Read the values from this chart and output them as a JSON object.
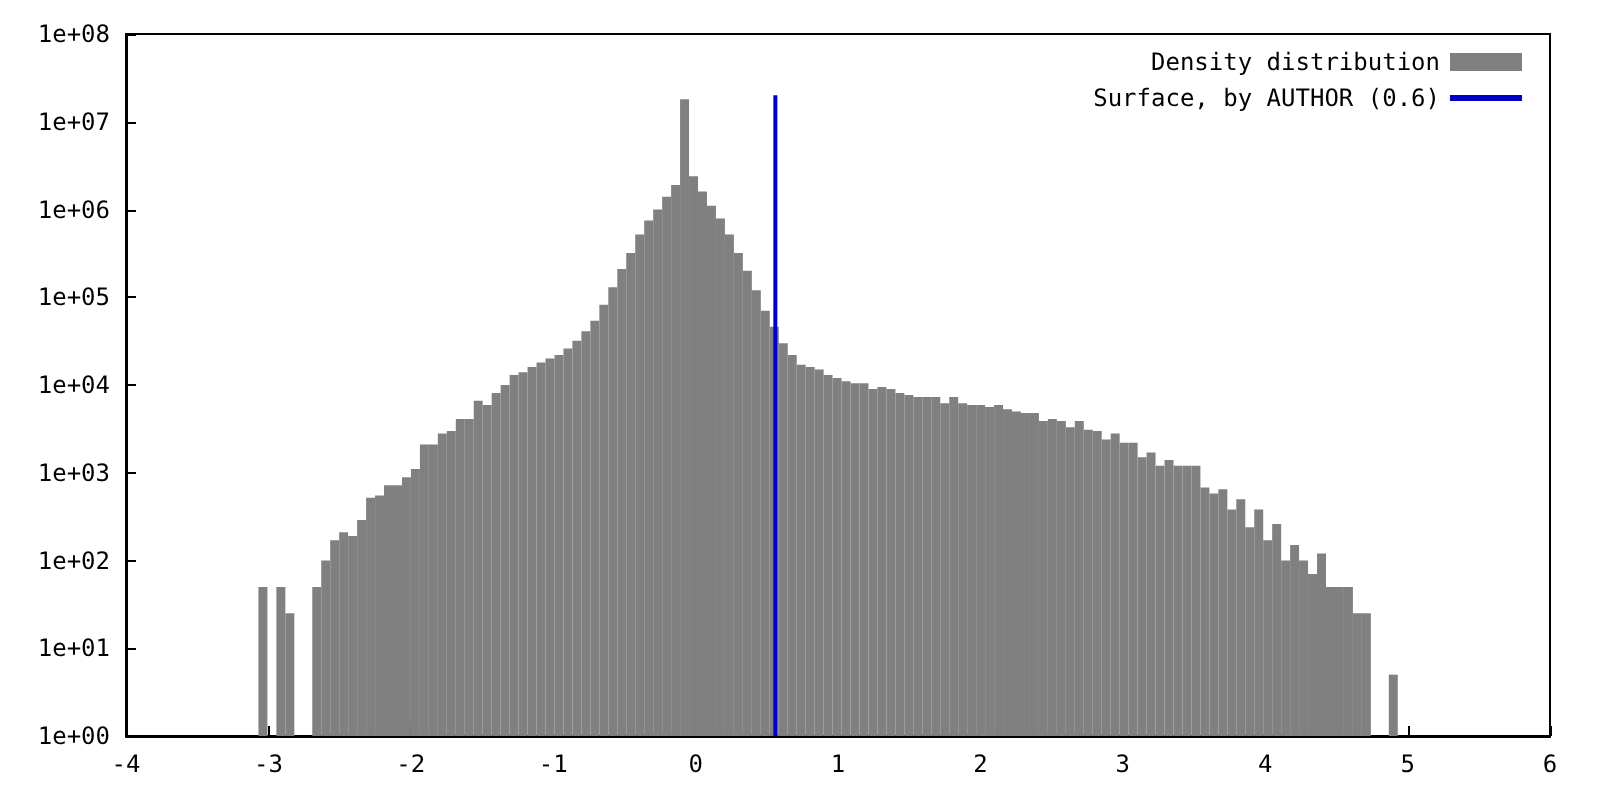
{
  "chart_data": {
    "type": "histogram",
    "bins": [
      -3.07,
      -3.007,
      -2.944,
      -2.881,
      -2.818,
      -2.755,
      -2.692,
      -2.629,
      -2.566,
      -2.503,
      -2.44,
      -2.377,
      -2.314,
      -2.251,
      -2.188,
      -2.125,
      -2.062,
      -1.999,
      -1.936,
      -1.873,
      -1.81,
      -1.747,
      -1.684,
      -1.621,
      -1.558,
      -1.495,
      -1.432,
      -1.369,
      -1.306,
      -1.243,
      -1.18,
      -1.117,
      -1.054,
      -0.991,
      -0.928,
      -0.865,
      -0.802,
      -0.739,
      -0.676,
      -0.613,
      -0.55,
      -0.487,
      -0.424,
      -0.361,
      -0.298,
      -0.235,
      -0.172,
      -0.109,
      -0.046,
      0.017,
      0.08,
      0.143,
      0.206,
      0.269,
      0.332,
      0.395,
      0.458,
      0.521,
      0.584,
      0.647,
      0.71,
      0.773,
      0.836,
      0.899,
      0.962,
      1.025,
      1.088,
      1.151,
      1.214,
      1.277,
      1.34,
      1.403,
      1.466,
      1.529,
      1.592,
      1.655,
      1.718,
      1.781,
      1.844,
      1.907,
      1.97,
      2.033,
      2.096,
      2.159,
      2.222,
      2.285,
      2.348,
      2.411,
      2.474,
      2.537,
      2.6,
      2.663,
      2.726,
      2.789,
      2.852,
      2.915,
      2.978,
      3.041,
      3.104,
      3.167,
      3.23,
      3.293,
      3.356,
      3.419,
      3.482,
      3.545,
      3.608,
      3.671,
      3.734,
      3.797,
      3.86,
      3.923,
      3.986,
      4.049,
      4.112,
      4.175,
      4.238,
      4.301,
      4.364,
      4.427,
      4.49,
      4.553,
      4.616,
      4.679,
      4.742,
      4.805,
      4.868,
      4.931
    ],
    "series": [
      {
        "name": "Density distribution",
        "color": "#808080",
        "values": [
          50,
          null,
          50,
          25,
          null,
          null,
          50,
          100,
          170,
          210,
          190,
          290,
          520,
          550,
          720,
          720,
          890,
          1100,
          2100,
          2100,
          2800,
          3000,
          4100,
          4100,
          6600,
          5900,
          8100,
          10000,
          13000,
          14000,
          16000,
          18000,
          20000,
          22000,
          26000,
          32000,
          41000,
          54000,
          82000,
          130000,
          210000,
          320000,
          520000,
          750000,
          1000000,
          1400000,
          1900000,
          18000000,
          2400000,
          1600000,
          1100000,
          790000,
          520000,
          320000,
          200000,
          120000,
          70000,
          46000,
          30000,
          22000,
          17000,
          16000,
          15000,
          13000,
          12000,
          11000,
          10500,
          10500,
          9000,
          9500,
          9000,
          8100,
          7700,
          7300,
          7300,
          7300,
          6200,
          7300,
          6200,
          5900,
          5900,
          5600,
          5900,
          5300,
          5000,
          4800,
          4800,
          3900,
          4100,
          3900,
          3300,
          3900,
          3100,
          3000,
          2400,
          2800,
          2200,
          2200,
          1500,
          1700,
          1200,
          1400,
          1200,
          1200,
          1200,
          680,
          580,
          650,
          380,
          500,
          240,
          380,
          170,
          260,
          100,
          150,
          100,
          70,
          120,
          50,
          50,
          50,
          25,
          25,
          null,
          null,
          5
        ]
      },
      {
        "type": "line",
        "name": "Surface, by AUTHOR (0.6)",
        "color": "#0000cc",
        "x": [
          0.56,
          0.56
        ],
        "values": [
          1,
          20000000
        ]
      }
    ],
    "xlim": [
      -4,
      6
    ],
    "xticks": [
      -4,
      -3,
      -2,
      -1,
      0,
      1,
      2,
      3,
      4,
      5,
      6
    ],
    "ylim": [
      1,
      100000000
    ],
    "yticks": [
      {
        "value": 1,
        "label": "1e+00"
      },
      {
        "value": 10,
        "label": "1e+01"
      },
      {
        "value": 100,
        "label": "1e+02"
      },
      {
        "value": 1000,
        "label": "1e+03"
      },
      {
        "value": 10000,
        "label": "1e+04"
      },
      {
        "value": 100000,
        "label": "1e+05"
      },
      {
        "value": 1000000,
        "label": "1e+06"
      },
      {
        "value": 10000000,
        "label": "1e+07"
      },
      {
        "value": 100000000,
        "label": "1e+08"
      }
    ],
    "log": "y",
    "grid": false,
    "legend": "top right",
    "marker": "none",
    "line_style": "solid"
  }
}
